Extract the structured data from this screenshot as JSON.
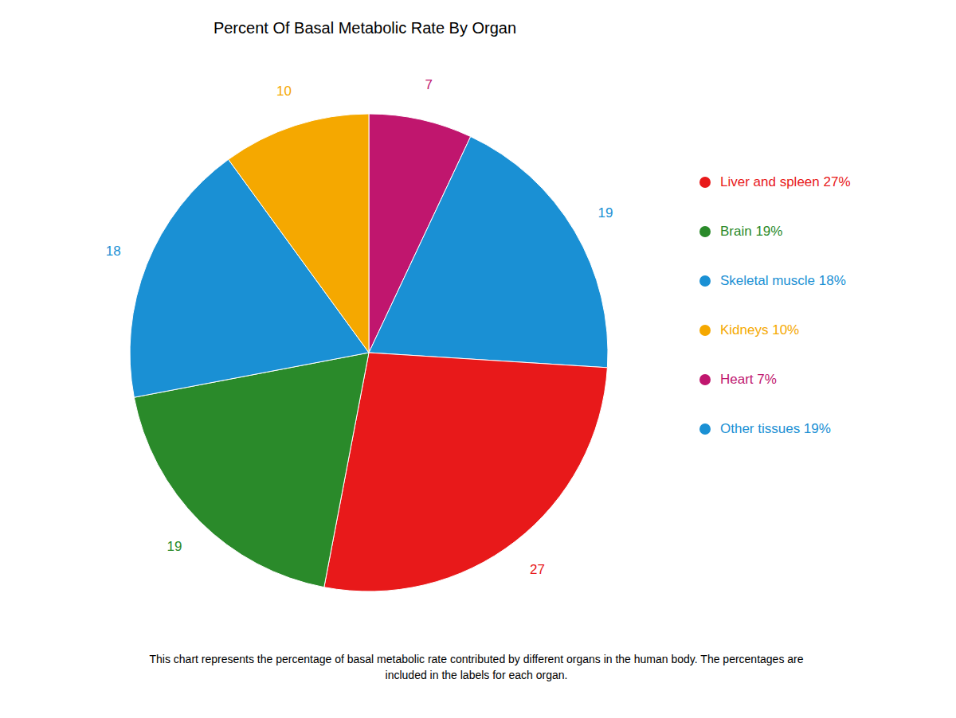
{
  "chart_data": {
    "type": "pie",
    "title": "Percent Of Basal Metabolic Rate By Organ",
    "values": [
      7,
      19,
      27,
      19,
      18,
      10
    ],
    "colors": [
      "#c0166e",
      "#1a90d4",
      "#e8191a",
      "#2a8a2a",
      "#1a90d4",
      "#f5a800"
    ],
    "data_labels": true,
    "legend_entries": [
      {
        "name": "Liver and spleen 27%",
        "color": "#e8191a"
      },
      {
        "name": "Brain 19%",
        "color": "#2a8a2a"
      },
      {
        "name": "Skeletal muscle 18%",
        "color": "#1a90d4"
      },
      {
        "name": "Kidneys 10%",
        "color": "#f5a800"
      },
      {
        "name": "Heart 7%",
        "color": "#c0166e"
      },
      {
        "name": "Other tissues 19%",
        "color": "#1a90d4"
      }
    ],
    "footer": "This chart represents the percentage of basal metabolic rate contributed by different organs in the human body. The percentages are\nincluded in the labels for each organ."
  }
}
